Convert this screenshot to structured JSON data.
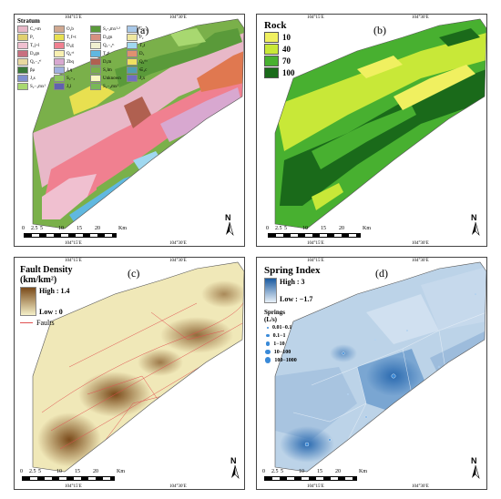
{
  "panels": {
    "a": {
      "letter": "(a)",
      "legend_title": "Stratum",
      "items": [
        {
          "label": "C₂+m",
          "color": "#e8b8c8"
        },
        {
          "label": "O₂b",
          "color": "#d0a890"
        },
        {
          "label": "S₂-₃mx²-³",
          "color": "#5a9a3a"
        },
        {
          "label": "C₂-₃",
          "color": "#a8c8e8"
        },
        {
          "label": "P₁",
          "color": "#e0d070"
        },
        {
          "label": "T₁f+t",
          "color": "#e8e050"
        },
        {
          "label": "D₂gn",
          "color": "#d89080"
        },
        {
          "label": "P₂",
          "color": "#f0e8a0"
        },
        {
          "label": "T₁j+l",
          "color": "#f0c0d0"
        },
        {
          "label": "D₂g",
          "color": "#f08090"
        },
        {
          "label": "Q₃−₄ᵃᶫ",
          "color": "#f0f0d0"
        },
        {
          "label": "T₂t",
          "color": "#a0d8f0"
        },
        {
          "label": "D₂gn",
          "color": "#c87080"
        },
        {
          "label": "Q₄ᵃᵈ",
          "color": "#f8f0b0"
        },
        {
          "label": "T₃t¹",
          "color": "#60b8e0"
        },
        {
          "label": "D₃",
          "color": "#e09070"
        },
        {
          "label": "Q₃−₄ᵉᶠ",
          "color": "#e8d8a0"
        },
        {
          "label": "Zbq",
          "color": "#d8a8d0"
        },
        {
          "label": "D₃tn",
          "color": "#b06050"
        },
        {
          "label": "Q₄ᶠᶠᵃ",
          "color": "#f0e060"
        },
        {
          "label": "βμ",
          "color": "#3a7a3a"
        },
        {
          "label": "J₁q",
          "color": "#a0b0e0"
        },
        {
          "label": "S₁lm",
          "color": "#7ab04a"
        },
        {
          "label": "∈₂c",
          "color": "#50a0b0"
        },
        {
          "label": "J₂s",
          "color": "#8090d0"
        },
        {
          "label": "S₂−₃",
          "color": "#90c860"
        },
        {
          "label": "Unknown",
          "color": "#f8f8c0"
        },
        {
          "label": "J₂x",
          "color": "#7070c0"
        },
        {
          "label": "S₂−₃mx¹",
          "color": "#a8d870"
        },
        {
          "label": "",
          "color": "#ffffff"
        },
        {
          "label": "J₃l",
          "color": "#6060b0"
        },
        {
          "label": "S₂−₃mx²",
          "color": "#78b858"
        },
        {
          "label": "",
          "color": "#ffffff"
        }
      ],
      "scale": {
        "labels": [
          "0",
          "2.5",
          "5",
          "10",
          "15",
          "20"
        ],
        "unit": "Km"
      },
      "north": "N",
      "top_ticks": [
        "104°15′E",
        "104°30′E"
      ],
      "bottom_ticks": [
        "104°15′E",
        "104°30′E"
      ],
      "left_ticks": [
        "25°30′N",
        "25°15′N"
      ],
      "right_ticks": [
        "25°30′N",
        "25°15′N"
      ]
    },
    "b": {
      "letter": "(b)",
      "legend_title": "Rock",
      "items": [
        {
          "label": "10",
          "color": "#f0f060"
        },
        {
          "label": "40",
          "color": "#c8e838"
        },
        {
          "label": "70",
          "color": "#48b030"
        },
        {
          "label": "100",
          "color": "#1a6a1a"
        }
      ],
      "scale": {
        "labels": [
          "0",
          "2.5",
          "5",
          "10",
          "15",
          "20"
        ],
        "unit": "Km"
      },
      "north": "N",
      "top_ticks": [
        "104°15′E",
        "104°30′E"
      ],
      "bottom_ticks": [
        "104°15′E",
        "104°30′E"
      ],
      "left_ticks": [
        "25°30′N",
        "25°15′N"
      ],
      "right_ticks": [
        "25°30′N",
        "25°15′N"
      ]
    },
    "c": {
      "letter": "(c)",
      "legend_title": "Fault Density",
      "legend_unit": "(km/km²)",
      "high": "High : 1.4",
      "low": "Low : 0",
      "faults_label": "Faults",
      "colors": {
        "high": "#7a4a1a",
        "low": "#f5f0c8",
        "fault": "#e05050"
      },
      "scale": {
        "labels": [
          "0",
          "2.5",
          "5",
          "10",
          "15",
          "20"
        ],
        "unit": "Km"
      },
      "north": "N",
      "top_ticks": [
        "104°15′E",
        "104°30′E"
      ],
      "bottom_ticks": [
        "104°15′E",
        "104°30′E"
      ],
      "left_ticks": [
        "25°30′N",
        "25°15′N"
      ],
      "right_ticks": [
        "25°30′N",
        "25°15′N"
      ]
    },
    "d": {
      "letter": "(d)",
      "legend_title": "Spring Index",
      "high": "High : 3",
      "low": "Low : −1.7",
      "springs_title": "Springs",
      "springs_unit": "(L/s)",
      "springs": [
        "0.01−0.1",
        "0.1−1",
        "1−10",
        "10−100",
        "100−1000"
      ],
      "colors": {
        "high": "#1a5aa0",
        "low": "#e8f0f8",
        "spring": "#3a8ad8"
      },
      "scale": {
        "labels": [
          "0",
          "2.5",
          "5",
          "10",
          "15",
          "20"
        ],
        "unit": "Km"
      },
      "north": "N",
      "top_ticks": [
        "104°15′E",
        "104°30′E"
      ],
      "bottom_ticks": [
        "104°15′E",
        "104°30′E"
      ],
      "left_ticks": [
        "25°30′N",
        "25°15′N"
      ],
      "right_ticks": [
        "25°30′N",
        "25°15′N"
      ]
    }
  }
}
